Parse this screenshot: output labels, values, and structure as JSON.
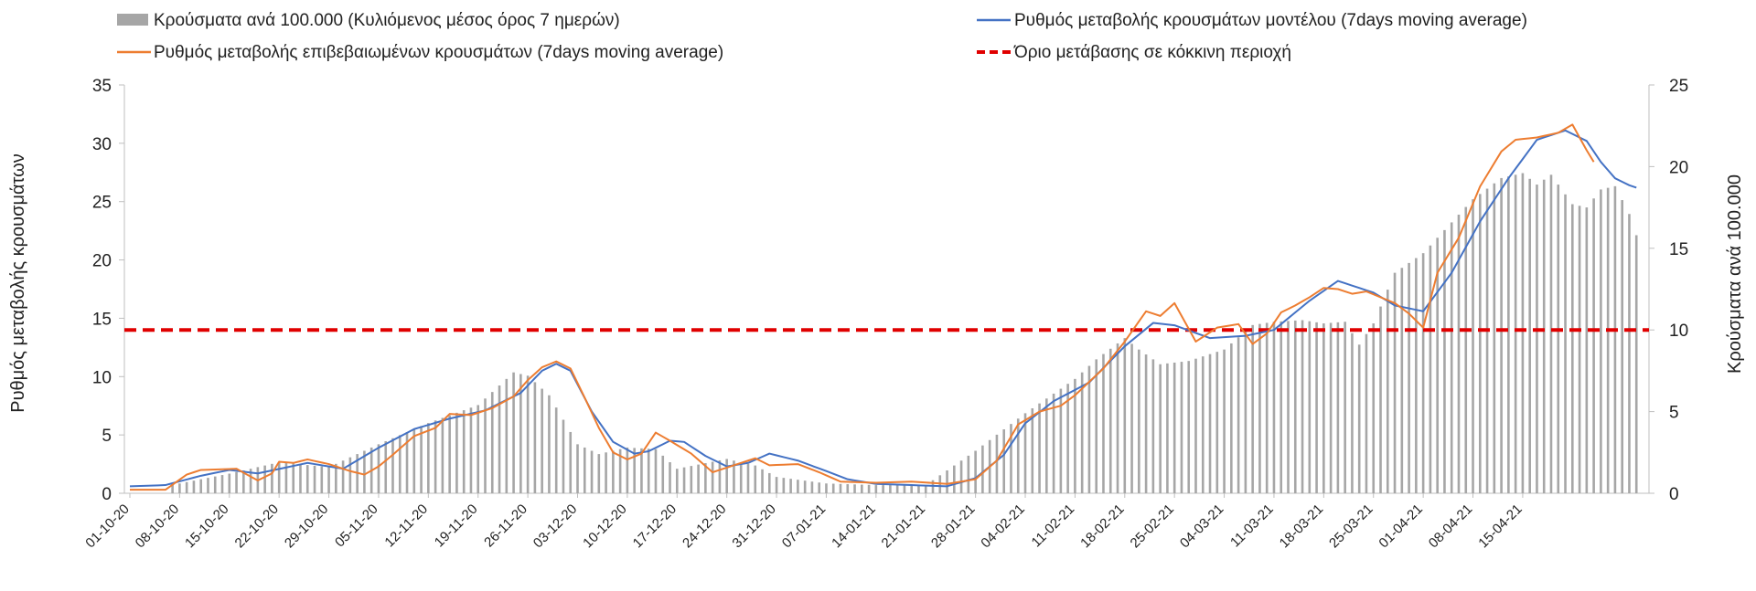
{
  "chart_data": {
    "type": "bar+line",
    "legend": [
      {
        "label": "Κρούσματα ανά 100.000 (Κυλιόμενος μέσος όρος 7 ημερών)",
        "kind": "bar",
        "color": "#a6a6a6"
      },
      {
        "label": "Ρυθμός μεταβολής κρουσμάτων μοντέλου (7days moving average)",
        "kind": "line",
        "color": "#4472c4"
      },
      {
        "label": "Ρυθμός μεταβολής επιβεβαιωμένων κρουσμάτων (7days moving average)",
        "kind": "line",
        "color": "#ed7d31"
      },
      {
        "label": "Όριο μετάβασης σε κόκκινη περιοχή",
        "kind": "dashed",
        "color": "#e00000"
      }
    ],
    "ylabel_left": "Ρυθμός μεταβολής κρουσμάτων",
    "ylabel_right": "Κρούσματα ανά 100.000",
    "ylim_left": [
      0,
      35
    ],
    "yticks_left": [
      "0",
      "5",
      "10",
      "15",
      "20",
      "25",
      "30",
      "35"
    ],
    "ylim_right": [
      0,
      25
    ],
    "yticks_right": [
      "0",
      "5",
      "10",
      "15",
      "20",
      "25"
    ],
    "x_tick_labels": [
      "01-10-20",
      "08-10-20",
      "15-10-20",
      "22-10-20",
      "29-10-20",
      "05-11-20",
      "12-11-20",
      "19-11-20",
      "26-11-20",
      "03-12-20",
      "10-12-20",
      "17-12-20",
      "24-12-20",
      "31-12-20",
      "07-01-21",
      "14-01-21",
      "21-01-21",
      "28-01-21",
      "04-02-21",
      "11-02-21",
      "18-02-21",
      "25-02-21",
      "04-03-21",
      "11-03-21",
      "18-03-21",
      "25-03-21",
      "01-04-21",
      "08-04-21",
      "15-04-21"
    ],
    "threshold_left": 14,
    "bar_anchor_days": [
      [
        0,
        0.3
      ],
      [
        7,
        0.6
      ],
      [
        14,
        1.2
      ],
      [
        21,
        1.9
      ],
      [
        28,
        1.6
      ],
      [
        35,
        3.0
      ],
      [
        42,
        4.3
      ],
      [
        49,
        5.4
      ],
      [
        54,
        7.4
      ],
      [
        56,
        7.2
      ],
      [
        59,
        6.0
      ],
      [
        63,
        3.0
      ],
      [
        66,
        2.4
      ],
      [
        70,
        2.8
      ],
      [
        74,
        2.7
      ],
      [
        77,
        1.5
      ],
      [
        84,
        2.1
      ],
      [
        88,
        1.7
      ],
      [
        91,
        1.0
      ],
      [
        98,
        0.6
      ],
      [
        105,
        0.5
      ],
      [
        112,
        0.5
      ],
      [
        119,
        2.6
      ],
      [
        126,
        4.9
      ],
      [
        133,
        7.0
      ],
      [
        136,
        8.2
      ],
      [
        140,
        9.5
      ],
      [
        142,
        8.8
      ],
      [
        145,
        7.9
      ],
      [
        149,
        8.1
      ],
      [
        154,
        8.8
      ],
      [
        158,
        10.3
      ],
      [
        161,
        10.5
      ],
      [
        165,
        10.6
      ],
      [
        168,
        10.4
      ],
      [
        171,
        10.5
      ],
      [
        173,
        9.1
      ],
      [
        175,
        10.4
      ],
      [
        178,
        13.5
      ],
      [
        182,
        14.7
      ],
      [
        189,
        18.0
      ],
      [
        193,
        19.3
      ],
      [
        196,
        19.6
      ],
      [
        198,
        18.9
      ],
      [
        200,
        19.5
      ],
      [
        203,
        17.7
      ],
      [
        205,
        17.5
      ],
      [
        207,
        18.6
      ],
      [
        209,
        18.8
      ],
      [
        211,
        17.1
      ],
      [
        212,
        15.8
      ]
    ],
    "model_anchor_days": [
      [
        0,
        0.6
      ],
      [
        5,
        0.7
      ],
      [
        10,
        1.5
      ],
      [
        14,
        2.0
      ],
      [
        18,
        1.7
      ],
      [
        25,
        2.6
      ],
      [
        30,
        2.1
      ],
      [
        35,
        3.9
      ],
      [
        40,
        5.5
      ],
      [
        45,
        6.4
      ],
      [
        50,
        7.1
      ],
      [
        55,
        8.6
      ],
      [
        58,
        10.5
      ],
      [
        60,
        11.1
      ],
      [
        62,
        10.5
      ],
      [
        65,
        7.0
      ],
      [
        68,
        4.4
      ],
      [
        71,
        3.4
      ],
      [
        73,
        3.6
      ],
      [
        76,
        4.5
      ],
      [
        78,
        4.4
      ],
      [
        81,
        3.2
      ],
      [
        84,
        2.3
      ],
      [
        87,
        2.6
      ],
      [
        90,
        3.4
      ],
      [
        94,
        2.8
      ],
      [
        98,
        1.9
      ],
      [
        101,
        1.2
      ],
      [
        105,
        0.8
      ],
      [
        110,
        0.7
      ],
      [
        115,
        0.6
      ],
      [
        119,
        1.3
      ],
      [
        123,
        3.3
      ],
      [
        126,
        6.0
      ],
      [
        130,
        7.9
      ],
      [
        135,
        9.5
      ],
      [
        140,
        12.6
      ],
      [
        144,
        14.6
      ],
      [
        147,
        14.4
      ],
      [
        152,
        13.3
      ],
      [
        157,
        13.5
      ],
      [
        161,
        14.0
      ],
      [
        166,
        16.5
      ],
      [
        170,
        18.2
      ],
      [
        175,
        17.2
      ],
      [
        178,
        16.1
      ],
      [
        182,
        15.6
      ],
      [
        186,
        18.9
      ],
      [
        190,
        23.3
      ],
      [
        194,
        27.0
      ],
      [
        198,
        30.3
      ],
      [
        202,
        31.1
      ],
      [
        205,
        30.2
      ],
      [
        207,
        28.4
      ],
      [
        209,
        27.0
      ],
      [
        211,
        26.4
      ],
      [
        212,
        26.2
      ]
    ],
    "confirmed_anchor_days": [
      [
        0,
        0.3
      ],
      [
        5,
        0.3
      ],
      [
        8,
        1.6
      ],
      [
        10,
        2.0
      ],
      [
        15,
        2.1
      ],
      [
        18,
        1.1
      ],
      [
        20,
        1.7
      ],
      [
        21,
        2.7
      ],
      [
        23,
        2.6
      ],
      [
        25,
        2.9
      ],
      [
        28,
        2.5
      ],
      [
        31,
        1.9
      ],
      [
        33,
        1.6
      ],
      [
        35,
        2.3
      ],
      [
        37,
        3.3
      ],
      [
        40,
        4.9
      ],
      [
        43,
        5.6
      ],
      [
        45,
        6.8
      ],
      [
        48,
        6.7
      ],
      [
        51,
        7.3
      ],
      [
        54,
        8.3
      ],
      [
        56,
        9.7
      ],
      [
        58,
        10.8
      ],
      [
        60,
        11.3
      ],
      [
        62,
        10.7
      ],
      [
        64,
        8.2
      ],
      [
        66,
        5.6
      ],
      [
        68,
        3.5
      ],
      [
        70,
        2.9
      ],
      [
        72,
        3.4
      ],
      [
        74,
        5.2
      ],
      [
        76,
        4.5
      ],
      [
        79,
        3.4
      ],
      [
        82,
        1.8
      ],
      [
        85,
        2.4
      ],
      [
        88,
        3.0
      ],
      [
        90,
        2.4
      ],
      [
        94,
        2.5
      ],
      [
        97,
        1.8
      ],
      [
        100,
        1.0
      ],
      [
        105,
        0.9
      ],
      [
        110,
        1.0
      ],
      [
        115,
        0.8
      ],
      [
        119,
        1.2
      ],
      [
        122,
        2.8
      ],
      [
        125,
        5.9
      ],
      [
        128,
        7.0
      ],
      [
        131,
        7.5
      ],
      [
        133,
        8.4
      ],
      [
        137,
        10.7
      ],
      [
        140,
        13.0
      ],
      [
        143,
        15.6
      ],
      [
        145,
        15.2
      ],
      [
        147,
        16.3
      ],
      [
        150,
        13.0
      ],
      [
        153,
        14.2
      ],
      [
        156,
        14.5
      ],
      [
        158,
        12.8
      ],
      [
        160,
        13.7
      ],
      [
        162,
        15.5
      ],
      [
        164,
        16.1
      ],
      [
        166,
        16.8
      ],
      [
        168,
        17.6
      ],
      [
        170,
        17.5
      ],
      [
        172,
        17.1
      ],
      [
        174,
        17.3
      ],
      [
        176,
        16.8
      ],
      [
        178,
        16.3
      ],
      [
        180,
        15.4
      ],
      [
        182,
        14.2
      ],
      [
        184,
        18.9
      ],
      [
        187,
        21.9
      ],
      [
        190,
        26.3
      ],
      [
        193,
        29.3
      ],
      [
        195,
        30.3
      ],
      [
        198,
        30.5
      ],
      [
        201,
        30.9
      ],
      [
        203,
        31.6
      ],
      [
        205,
        29.4
      ],
      [
        206,
        28.4
      ]
    ]
  }
}
